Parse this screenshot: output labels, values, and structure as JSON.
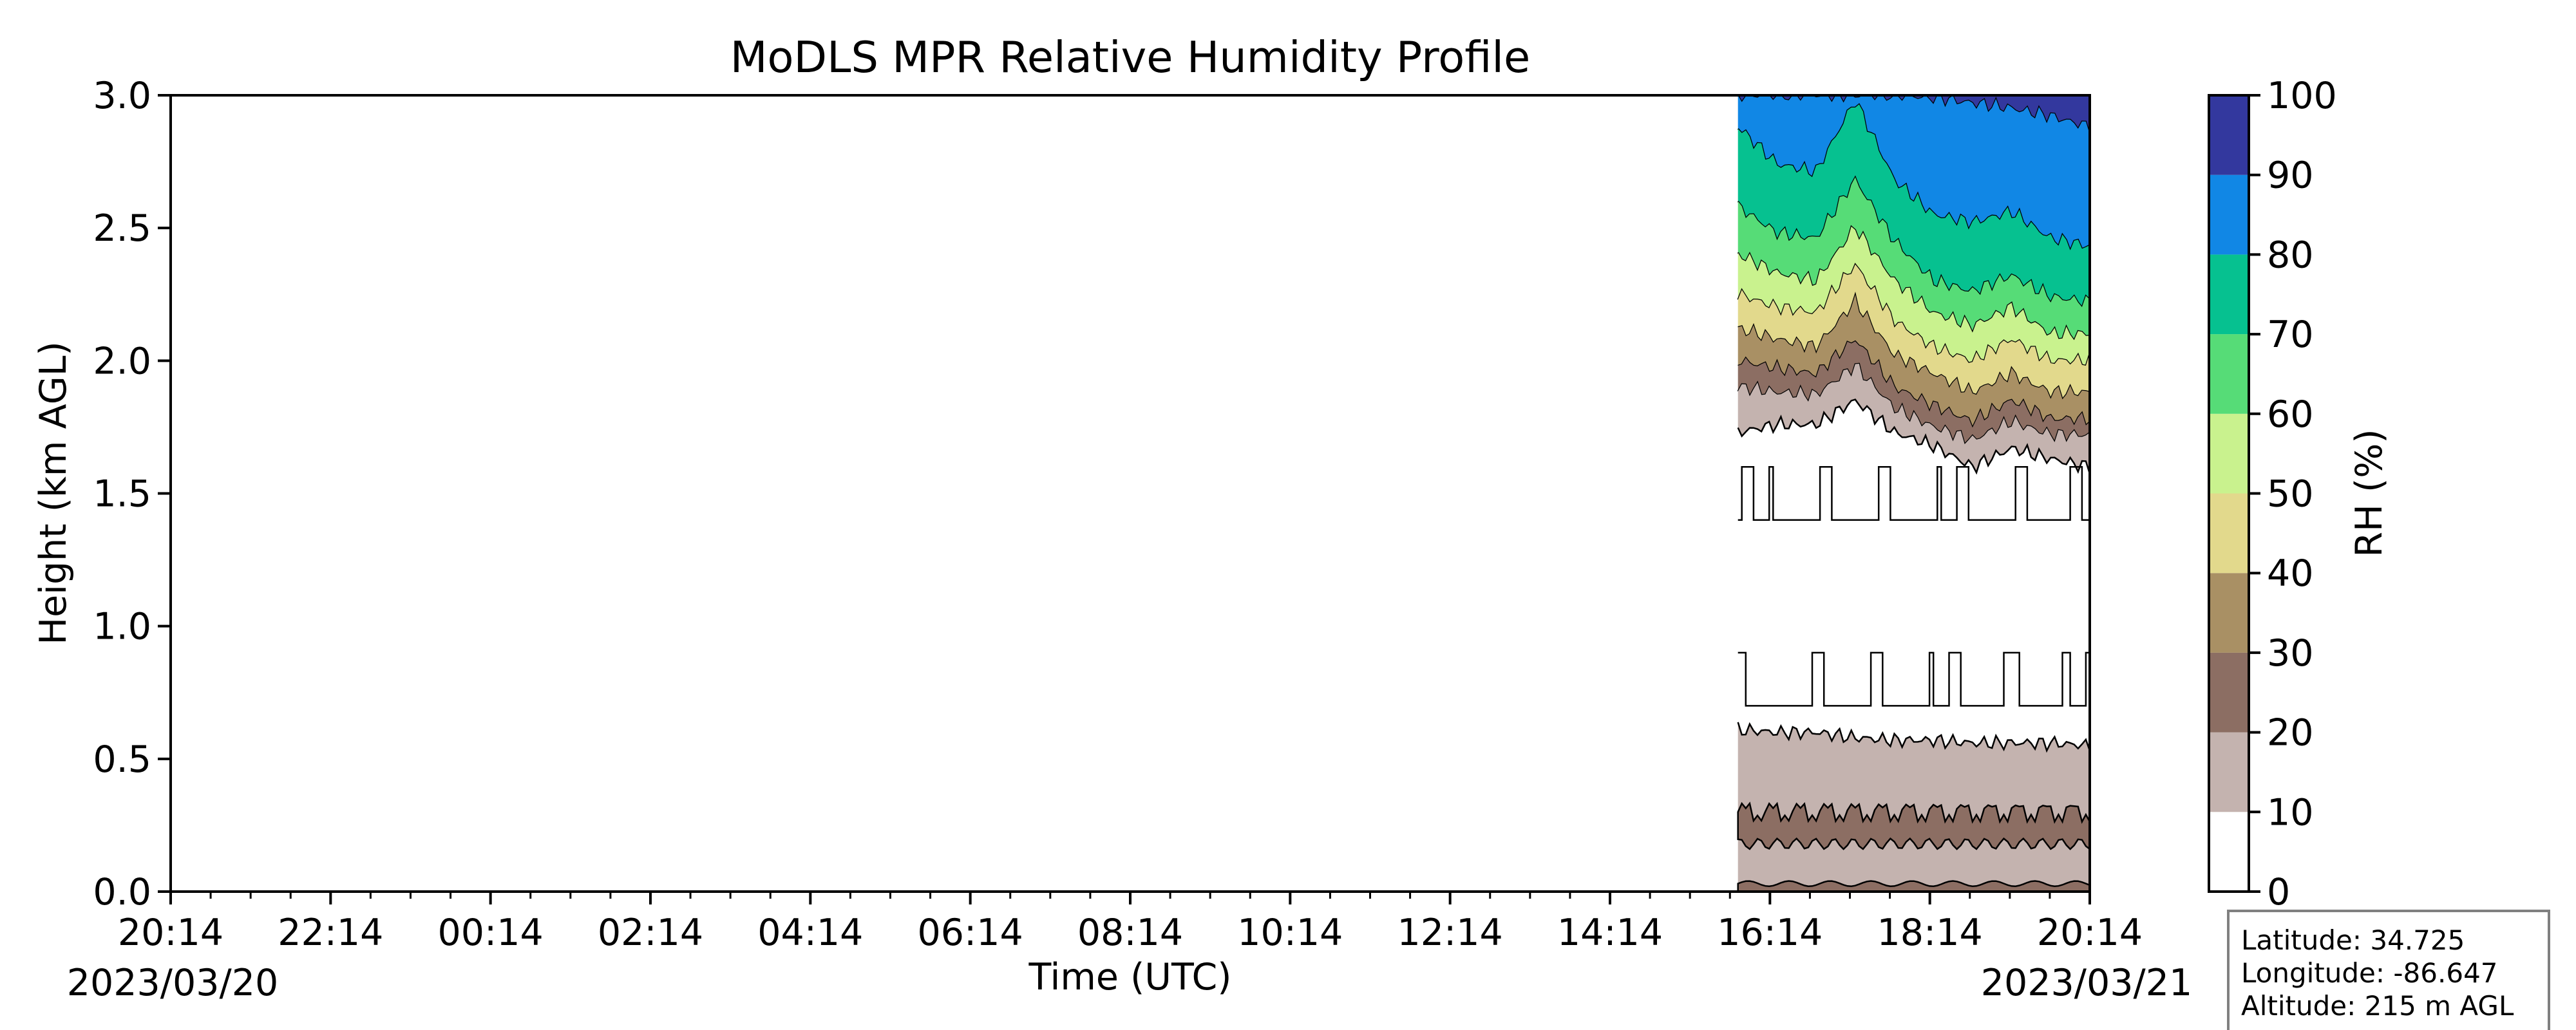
{
  "chart_data": {
    "type": "heatmap",
    "title": "MoDLS MPR Relative Humidity Profile",
    "xlabel": "Time (UTC)",
    "ylabel": "Height (km AGL)",
    "x_range": [
      "2023/03/20 20:14",
      "2023/03/21 20:14"
    ],
    "x_ticks": [
      "20:14",
      "22:14",
      "00:14",
      "02:14",
      "04:14",
      "06:14",
      "08:14",
      "10:14",
      "12:14",
      "14:14",
      "16:14",
      "18:14",
      "20:14"
    ],
    "x_date_labels": {
      "start": "2023/03/20",
      "end": "2023/03/21"
    },
    "ylim": [
      0.0,
      3.0
    ],
    "y_ticks": [
      "0.0",
      "0.5",
      "1.0",
      "1.5",
      "2.0",
      "2.5",
      "3.0"
    ],
    "data_start_time": "2023/03/21 15:50",
    "colorbar": {
      "label": "RH (%)",
      "levels": [
        0,
        10,
        20,
        30,
        40,
        50,
        60,
        70,
        80,
        90,
        100
      ],
      "tick_labels": [
        "0",
        "10",
        "20",
        "30",
        "40",
        "50",
        "60",
        "70",
        "80",
        "90",
        "100"
      ],
      "colors": [
        "#ffffff",
        "#c4b3af",
        "#8c6e63",
        "#a99064",
        "#e2d98c",
        "#c9f28e",
        "#56dc77",
        "#06c190",
        "#1187e5",
        "#33389e"
      ]
    },
    "profile_times": [
      "15:50",
      "16:20",
      "16:50",
      "17:20",
      "17:50",
      "18:20",
      "18:50",
      "19:20",
      "19:50",
      "20:14"
    ],
    "contours": [
      {
        "level": 90,
        "heights": [
          3.0,
          3.0,
          3.0,
          3.0,
          3.0,
          2.99,
          2.97,
          2.95,
          2.92,
          2.88
        ]
      },
      {
        "level": 80,
        "heights": [
          2.88,
          2.74,
          2.71,
          2.98,
          2.68,
          2.55,
          2.52,
          2.56,
          2.46,
          2.43
        ]
      },
      {
        "level": 70,
        "heights": [
          2.58,
          2.48,
          2.46,
          2.68,
          2.45,
          2.3,
          2.26,
          2.32,
          2.24,
          2.22
        ]
      },
      {
        "level": 60,
        "heights": [
          2.4,
          2.33,
          2.3,
          2.5,
          2.3,
          2.18,
          2.13,
          2.2,
          2.1,
          2.1
        ]
      },
      {
        "level": 50,
        "heights": [
          2.25,
          2.2,
          2.18,
          2.36,
          2.15,
          2.05,
          2.0,
          2.08,
          2.0,
          2.0
        ]
      },
      {
        "level": 40,
        "heights": [
          2.12,
          2.08,
          2.05,
          2.22,
          2.02,
          1.95,
          1.88,
          1.95,
          1.88,
          1.88
        ]
      },
      {
        "level": 30,
        "heights": [
          2.0,
          1.97,
          1.95,
          2.08,
          1.9,
          1.83,
          1.77,
          1.85,
          1.78,
          1.78
        ]
      },
      {
        "level": 20,
        "heights": [
          1.9,
          1.88,
          1.87,
          1.98,
          1.82,
          1.75,
          1.7,
          1.77,
          1.72,
          1.72
        ]
      },
      {
        "level": 10,
        "heights": [
          1.73,
          1.76,
          1.76,
          1.85,
          1.73,
          1.68,
          1.6,
          1.67,
          1.63,
          1.6
        ]
      }
    ],
    "low_layer": {
      "rh10_top_heights": [
        0.61,
        0.6,
        0.6,
        0.58,
        0.57,
        0.57,
        0.56,
        0.56,
        0.56,
        0.55
      ],
      "rh20_band": {
        "bottom": 0.18,
        "top": 0.3
      },
      "rh20_surface_top": 0.03
    },
    "isolated_contours": [
      {
        "level": 10,
        "base_height": 1.4,
        "high_height": 1.6
      },
      {
        "level": 10,
        "base_height": 0.7,
        "high_height": 0.9
      }
    ],
    "info_box": {
      "latitude": "Latitude: 34.725",
      "longitude": "Longitude: -86.647",
      "altitude": "Altitude: 215 m AGL"
    }
  }
}
